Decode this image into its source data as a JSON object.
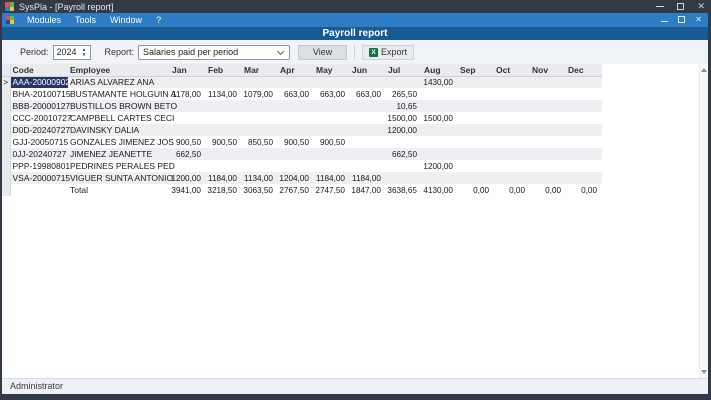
{
  "window": {
    "title": "SysPla - [Payroll report]",
    "close_glyph": "✕"
  },
  "menubar": {
    "items": [
      "Modules",
      "Tools",
      "Window",
      "?"
    ],
    "close_glyph": "✕"
  },
  "header": {
    "title": "Payroll report"
  },
  "toolbar": {
    "period_label": "Period:",
    "period_value": "2024",
    "report_label": "Report:",
    "report_value": "Salaries paid per period",
    "view_label": "View",
    "export_label": "Export",
    "excel_icon_letter": "X",
    "excel_icon_color": "#1a7343"
  },
  "grid": {
    "selected_indicator": ">",
    "selection_color": "#283565",
    "columns": [
      "Code",
      "Employee",
      "Jan",
      "Feb",
      "Mar",
      "Apr",
      "May",
      "Jun",
      "Jul",
      "Aug",
      "Sep",
      "Oct",
      "Nov",
      "Dec"
    ],
    "rows": [
      {
        "code": "AAA-20000902",
        "employee": "ARIAS ALVAREZ ANA",
        "selected": true,
        "values": [
          "",
          "",
          "",
          "",
          "",
          "",
          "",
          "1430,00",
          "",
          "",
          "",
          ""
        ]
      },
      {
        "code": "BHA-20100715",
        "employee": "BUSTAMANTE HOLGUIN A",
        "values": [
          "1178,00",
          "1134,00",
          "1079,00",
          "663,00",
          "663,00",
          "663,00",
          "265,50",
          "",
          "",
          "",
          "",
          ""
        ]
      },
      {
        "code": "BBB-20000127",
        "employee": "BUSTILLOS BROWN BETO",
        "values": [
          "",
          "",
          "",
          "",
          "",
          "",
          "10,65",
          "",
          "",
          "",
          "",
          ""
        ]
      },
      {
        "code": "CCC-20010727",
        "employee": "CAMPBELL CARTES CECI",
        "values": [
          "",
          "",
          "",
          "",
          "",
          "",
          "1500,00",
          "1500,00",
          "",
          "",
          "",
          ""
        ]
      },
      {
        "code": "D0D-20240727",
        "employee": "DAVINSKY DALIA",
        "values": [
          "",
          "",
          "",
          "",
          "",
          "",
          "1200,00",
          "",
          "",
          "",
          "",
          ""
        ]
      },
      {
        "code": "GJJ-20050715",
        "employee": "GONZALES JIMENEZ JOS",
        "values": [
          "900,50",
          "900,50",
          "850,50",
          "900,50",
          "900,50",
          "",
          "",
          "",
          "",
          "",
          "",
          ""
        ]
      },
      {
        "code": "0JJ-20240727",
        "employee": "JIMENEZ JEANETTE",
        "values": [
          "662,50",
          "",
          "",
          "",
          "",
          "",
          "662,50",
          "",
          "",
          "",
          "",
          ""
        ]
      },
      {
        "code": "PPP-19980801",
        "employee": "PEDRINES PERALES PED",
        "values": [
          "",
          "",
          "",
          "",
          "",
          "",
          "",
          "1200,00",
          "",
          "",
          "",
          ""
        ]
      },
      {
        "code": "VSA-20000715",
        "employee": "VIGUER SUNTA ANTONIO",
        "values": [
          "1200,00",
          "1184,00",
          "1134,00",
          "1204,00",
          "1184,00",
          "1184,00",
          "",
          "",
          "",
          "",
          "",
          ""
        ]
      },
      {
        "code": "",
        "employee": "Total",
        "total": true,
        "values": [
          "3941,00",
          "3218,50",
          "3063,50",
          "2767,50",
          "2747,50",
          "1847,00",
          "3638,65",
          "4130,00",
          "0,00",
          "0,00",
          "0,00",
          "0,00"
        ]
      }
    ]
  },
  "statusbar": {
    "text": "Administrator"
  }
}
